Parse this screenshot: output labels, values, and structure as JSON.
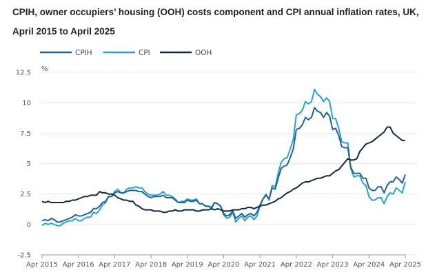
{
  "chart_data": {
    "type": "line",
    "title": "CPIH, owner occupiers’ housing (OOH) costs component and CPI annual inflation rates, UK, April 2015 to April 2025",
    "ylabel": "%",
    "ylim": [
      -2.5,
      12.5
    ],
    "yticks": [
      "12.5",
      "10",
      "7.5",
      "5",
      "2.5",
      "0",
      "-2.5"
    ],
    "xticks": [
      "Apr 2015",
      "Apr 2016",
      "Apr 2017",
      "Apr 2018",
      "Apr 2019",
      "Apr 2020",
      "Apr 2021",
      "Apr 2022",
      "Apr 2023",
      "Apr 2024",
      "Apr 2025"
    ],
    "x_range": [
      "Apr 2015",
      "Apr 2025"
    ],
    "x_frequency": "monthly",
    "grid": "horizontal",
    "legend_placement": "top-left",
    "series": [
      {
        "name": "CPIH",
        "color": "#206095",
        "values": [
          0.3,
          0.4,
          0.3,
          0.5,
          0.4,
          0.2,
          0.2,
          0.3,
          0.4,
          0.5,
          0.6,
          0.8,
          0.7,
          0.7,
          0.8,
          0.9,
          1.0,
          1.3,
          1.3,
          1.5,
          1.8,
          1.9,
          2.3,
          2.3,
          2.6,
          2.7,
          2.6,
          2.6,
          2.7,
          2.8,
          2.8,
          2.8,
          2.7,
          2.7,
          2.5,
          2.3,
          2.2,
          2.3,
          2.3,
          2.3,
          2.4,
          2.2,
          2.2,
          2.2,
          2.0,
          1.8,
          1.8,
          1.8,
          2.0,
          1.9,
          1.9,
          2.0,
          1.7,
          1.7,
          1.5,
          1.5,
          1.4,
          1.8,
          1.7,
          1.5,
          0.9,
          0.7,
          0.8,
          1.1,
          0.5,
          0.7,
          0.9,
          0.6,
          0.8,
          0.9,
          0.7,
          1.0,
          1.6,
          2.1,
          2.4,
          2.1,
          3.0,
          2.9,
          3.8,
          4.6,
          4.8,
          4.9,
          5.5,
          6.2,
          7.8,
          7.9,
          8.2,
          8.8,
          8.6,
          8.8,
          9.6,
          9.3,
          9.2,
          8.8,
          9.2,
          8.9,
          7.8,
          7.9,
          7.3,
          6.4,
          6.3,
          6.3,
          4.7,
          4.2,
          4.2,
          4.2,
          3.8,
          3.8,
          3.0,
          2.8,
          2.8,
          3.1,
          3.1,
          2.6,
          3.2,
          3.5,
          3.5,
          3.9,
          3.7,
          3.4,
          4.1
        ]
      },
      {
        "name": "CPI",
        "color": "#27a0cc",
        "values": [
          -0.1,
          0.1,
          0.0,
          0.1,
          0.0,
          -0.1,
          -0.1,
          0.1,
          0.2,
          0.3,
          0.3,
          0.5,
          0.3,
          0.3,
          0.5,
          0.6,
          0.6,
          1.0,
          0.9,
          1.2,
          1.6,
          1.8,
          2.3,
          2.3,
          2.7,
          2.9,
          2.6,
          2.6,
          2.9,
          3.0,
          3.0,
          3.1,
          3.0,
          3.0,
          2.7,
          2.5,
          2.4,
          2.4,
          2.4,
          2.5,
          2.7,
          2.4,
          2.4,
          2.3,
          2.1,
          1.8,
          1.9,
          1.9,
          2.1,
          2.0,
          2.0,
          2.1,
          1.7,
          1.7,
          1.5,
          1.5,
          1.3,
          1.8,
          1.7,
          1.5,
          0.8,
          0.5,
          0.6,
          1.0,
          0.2,
          0.5,
          0.7,
          0.3,
          0.6,
          0.7,
          0.4,
          0.7,
          1.5,
          2.1,
          2.5,
          2.0,
          3.2,
          3.1,
          4.2,
          5.1,
          5.4,
          5.5,
          6.2,
          7.0,
          9.0,
          9.1,
          9.4,
          10.1,
          9.9,
          10.1,
          11.1,
          10.7,
          10.5,
          10.1,
          10.4,
          10.1,
          8.7,
          8.7,
          7.9,
          6.8,
          6.7,
          6.7,
          4.6,
          3.9,
          4.0,
          4.0,
          3.4,
          3.2,
          2.3,
          2.0,
          2.0,
          2.2,
          2.2,
          1.7,
          2.3,
          2.6,
          2.5,
          3.0,
          2.8,
          2.6,
          3.5
        ]
      },
      {
        "name": "OOH",
        "color": "#0f2a44",
        "values": [
          1.9,
          1.8,
          1.9,
          1.8,
          1.8,
          1.8,
          1.8,
          1.8,
          1.9,
          1.9,
          2.0,
          2.0,
          2.1,
          2.2,
          2.3,
          2.3,
          2.4,
          2.4,
          2.4,
          2.7,
          2.6,
          2.6,
          2.5,
          2.5,
          2.4,
          2.2,
          2.1,
          2.0,
          2.0,
          1.9,
          1.9,
          1.6,
          1.5,
          1.3,
          1.2,
          1.2,
          1.2,
          1.1,
          1.1,
          1.1,
          1.0,
          1.0,
          1.1,
          1.1,
          1.2,
          1.1,
          1.1,
          1.2,
          1.2,
          1.2,
          1.2,
          1.1,
          1.1,
          1.2,
          1.2,
          1.2,
          1.3,
          1.2,
          1.3,
          1.2,
          1.1,
          1.1,
          1.1,
          1.2,
          1.2,
          1.2,
          1.3,
          1.3,
          1.4,
          1.4,
          1.3,
          1.4,
          1.5,
          1.6,
          1.6,
          1.7,
          1.8,
          1.9,
          2.1,
          2.2,
          2.4,
          2.6,
          2.7,
          2.9,
          3.0,
          3.2,
          3.4,
          3.5,
          3.5,
          3.6,
          3.7,
          3.8,
          3.8,
          3.9,
          4.0,
          4.0,
          4.2,
          4.4,
          4.5,
          4.8,
          5.1,
          5.4,
          5.3,
          5.3,
          5.4,
          6.0,
          6.3,
          6.6,
          6.7,
          6.8,
          7.0,
          7.2,
          7.4,
          7.6,
          8.0,
          8.0,
          7.5,
          7.3,
          7.1,
          6.9,
          6.9
        ]
      }
    ]
  }
}
